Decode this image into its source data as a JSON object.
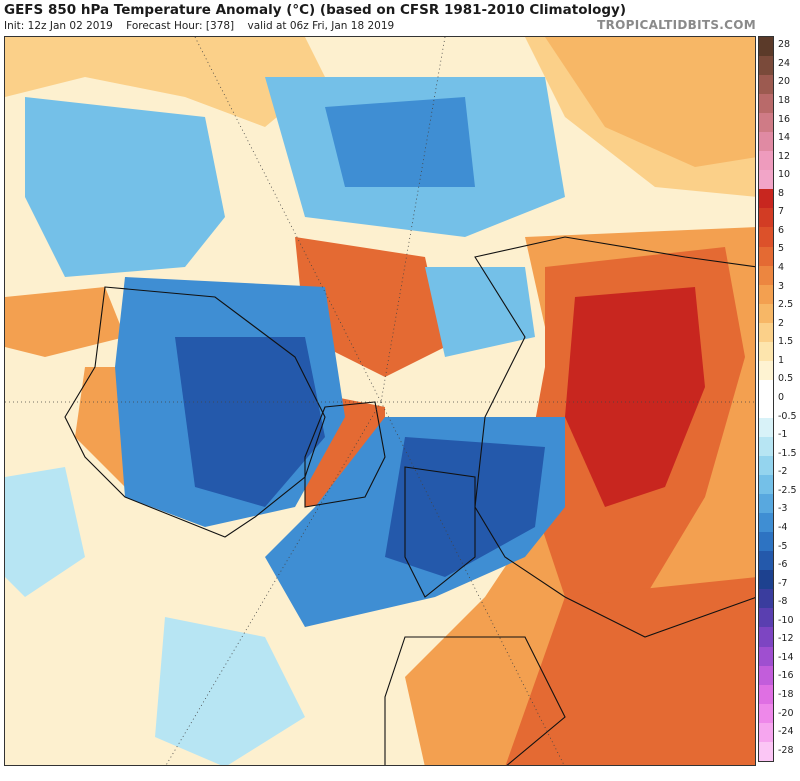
{
  "header": {
    "title": "GEFS 850 hPa Temperature Anomaly (°C) (based on CFSR 1981-2010 Climatology)",
    "init": "Init: 12z Jan 02 2019",
    "forecast_hour": "Forecast Hour: [378]",
    "valid": "valid at 06z Fri, Jan 18 2019",
    "brand": "TROPICALTIDBITS.COM"
  },
  "colorbar": {
    "labels": [
      "28",
      "24",
      "20",
      "18",
      "16",
      "14",
      "12",
      "10",
      "8",
      "7",
      "6",
      "5",
      "4",
      "3",
      "2.5",
      "2",
      "1.5",
      "1",
      "0.5",
      "0",
      "-0.5",
      "-1",
      "-1.5",
      "-2",
      "-2.5",
      "-3",
      "-4",
      "-5",
      "-6",
      "-7",
      "-8",
      "-10",
      "-12",
      "-14",
      "-16",
      "-18",
      "-20",
      "-24",
      "-28"
    ],
    "colors": [
      "#5b3a29",
      "#7a4a3a",
      "#9c5a50",
      "#b96a6a",
      "#cf7b86",
      "#e08aa3",
      "#ee9bbd",
      "#f2a5c8",
      "#c8261f",
      "#d23c24",
      "#dc512a",
      "#e46a33",
      "#ec8640",
      "#f3a050",
      "#f7b766",
      "#fbd089",
      "#fde5ad",
      "#fef3d2",
      "#ffffff",
      "#ffffff",
      "#d8f2f8",
      "#b7e5f3",
      "#94d4ee",
      "#74c0e8",
      "#58a8df",
      "#3f8ed3",
      "#2d73c2",
      "#2459ab",
      "#1d418f",
      "#3a3d9e",
      "#5a3fb0",
      "#7d45c2",
      "#9f4fd0",
      "#c25ddb",
      "#df6fe3",
      "#ee88ea",
      "#f6a6ef",
      "#fbc6f5"
    ]
  },
  "map": {
    "palette": {
      "ocean_neutral": "#fdf0cf",
      "warm_light": "#fbd089",
      "warm": "#f3a050",
      "warm_strong": "#e46a33",
      "hot": "#c8261f",
      "cool_light": "#b7e5f3",
      "cool": "#74c0e8",
      "cold": "#3f8ed3",
      "very_cold": "#2459ab",
      "deep_cold": "#1d418f",
      "coast": "#111111"
    }
  }
}
